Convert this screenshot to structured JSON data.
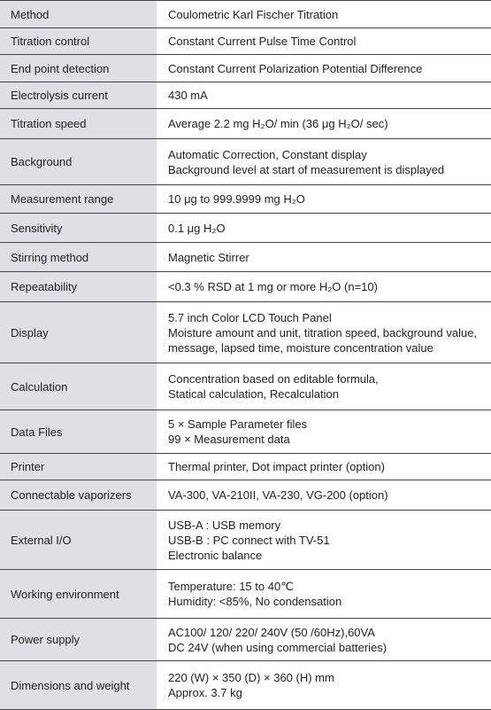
{
  "table": {
    "rows": [
      {
        "label": "Method",
        "lines": [
          "Coulometric Karl Fischer Titration"
        ]
      },
      {
        "label": "Titration control",
        "lines": [
          "Constant Current Pulse Time Control"
        ]
      },
      {
        "label": "End point detection",
        "lines": [
          "Constant Current Polarization Potential Difference"
        ]
      },
      {
        "label": "Electrolysis current",
        "lines": [
          "430 mA"
        ]
      },
      {
        "label": "Titration speed",
        "lines": [
          "Average 2.2 mg H₂O/ min (36 μg H₂O/ sec)"
        ]
      },
      {
        "label": "Background",
        "lines": [
          "Automatic Correction, Constant display",
          "Background level at start of measurement is displayed"
        ]
      },
      {
        "label": "Measurement range",
        "lines": [
          "10 μg to 999.9999 mg H₂O"
        ]
      },
      {
        "label": "Sensitivity",
        "lines": [
          "0.1 μg H₂O"
        ]
      },
      {
        "label": "Stirring method",
        "lines": [
          "Magnetic Stirrer"
        ]
      },
      {
        "label": "Repeatability",
        "lines": [
          "<0.3 % RSD at 1 mg or more H₂O (n=10)"
        ]
      },
      {
        "label": "Display",
        "lines": [
          "5.7 inch Color LCD Touch Panel",
          "Moisture amount and unit, titration speed, background value,",
          "message, lapsed time, moisture concentration value"
        ]
      },
      {
        "label": "Calculation",
        "lines": [
          "Concentration based on editable formula,",
          "Statical calculation, Recalculation"
        ]
      },
      {
        "label": "Data Files",
        "lines": [
          "5 × Sample Parameter files",
          "99 × Measurement data"
        ]
      },
      {
        "label": "Printer",
        "lines": [
          "Thermal printer, Dot impact printer (option)"
        ]
      },
      {
        "label": "Connectable vaporizers",
        "lines": [
          "VA-300, VA-210II, VA-230, VG-200 (option)"
        ]
      },
      {
        "label": "External I/O",
        "lines": [
          "USB-A : USB memory",
          "USB-B : PC connect with TV-51",
          "Electronic balance"
        ]
      },
      {
        "label": "Working environment",
        "lines": [
          "Temperature: 15 to 40℃",
          "Humidity: <85%, No condensation"
        ]
      },
      {
        "label": "Power supply",
        "lines": [
          "AC100/ 120/ 220/ 240V (50 /60Hz),60VA",
          "DC 24V (when using commercial batteries)"
        ]
      },
      {
        "label": "Dimensions and weight",
        "lines": [
          "220 (W) × 350 (D) × 360 (H) mm",
          "Approx. 3.7 kg"
        ]
      }
    ]
  }
}
